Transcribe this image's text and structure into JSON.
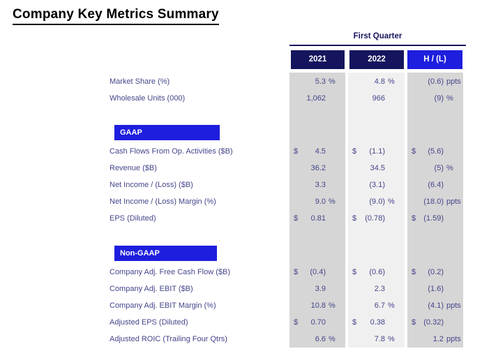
{
  "title": "Company Key Metrics Summary",
  "table": {
    "period_header": "First Quarter",
    "columns": [
      "2021",
      "2022",
      "H / (L)"
    ],
    "sections": {
      "gaap_label": "GAAP",
      "non_gaap_label": "Non-GAAP"
    },
    "rows": [
      {
        "label": "Market Share (%)",
        "cells": [
          {
            "d": "",
            "n": "5.3",
            "u": "%"
          },
          {
            "d": "",
            "n": "4.8",
            "u": "%"
          },
          {
            "d": "",
            "n": "(0.6)",
            "u": "ppts"
          }
        ]
      },
      {
        "label": "Wholesale Units (000)",
        "cells": [
          {
            "d": "",
            "n": "1,062",
            "u": ""
          },
          {
            "d": "",
            "n": "966",
            "u": ""
          },
          {
            "d": "",
            "n": "(9)",
            "u": "%"
          }
        ]
      },
      {
        "label": "Cash Flows From Op. Activities ($B)",
        "cells": [
          {
            "d": "$",
            "n": "4.5",
            "u": ""
          },
          {
            "d": "$",
            "n": "(1.1)",
            "u": ""
          },
          {
            "d": "$",
            "n": "(5.6)",
            "u": ""
          }
        ]
      },
      {
        "label": "Revenue ($B)",
        "cells": [
          {
            "d": "",
            "n": "36.2",
            "u": ""
          },
          {
            "d": "",
            "n": "34.5",
            "u": ""
          },
          {
            "d": "",
            "n": "(5)",
            "u": "%"
          }
        ]
      },
      {
        "label": "Net Income / (Loss) ($B)",
        "cells": [
          {
            "d": "",
            "n": "3.3",
            "u": ""
          },
          {
            "d": "",
            "n": "(3.1)",
            "u": ""
          },
          {
            "d": "",
            "n": "(6.4)",
            "u": ""
          }
        ]
      },
      {
        "label": "Net Income / (Loss) Margin (%)",
        "cells": [
          {
            "d": "",
            "n": "9.0",
            "u": "%"
          },
          {
            "d": "",
            "n": "(9.0)",
            "u": "%"
          },
          {
            "d": "",
            "n": "(18.0)",
            "u": "ppts"
          }
        ]
      },
      {
        "label": "EPS (Diluted)",
        "cells": [
          {
            "d": "$",
            "n": "0.81",
            "u": ""
          },
          {
            "d": "$",
            "n": "(0.78)",
            "u": ""
          },
          {
            "d": "$",
            "n": "(1.59)",
            "u": ""
          }
        ]
      },
      {
        "label": "Company Adj. Free Cash Flow ($B)",
        "cells": [
          {
            "d": "$",
            "n": "(0.4)",
            "u": ""
          },
          {
            "d": "$",
            "n": "(0.6)",
            "u": ""
          },
          {
            "d": "$",
            "n": "(0.2)",
            "u": ""
          }
        ]
      },
      {
        "label": "Company Adj. EBIT ($B)",
        "cells": [
          {
            "d": "",
            "n": "3.9",
            "u": ""
          },
          {
            "d": "",
            "n": "2.3",
            "u": ""
          },
          {
            "d": "",
            "n": "(1.6)",
            "u": ""
          }
        ]
      },
      {
        "label": "Company Adj. EBIT Margin (%)",
        "cells": [
          {
            "d": "",
            "n": "10.8",
            "u": "%"
          },
          {
            "d": "",
            "n": "6.7",
            "u": "%"
          },
          {
            "d": "",
            "n": "(4.1)",
            "u": "ppts"
          }
        ]
      },
      {
        "label": "Adjusted EPS (Diluted)",
        "cells": [
          {
            "d": "$",
            "n": "0.70",
            "u": ""
          },
          {
            "d": "$",
            "n": "0.38",
            "u": ""
          },
          {
            "d": "$",
            "n": "(0.32)",
            "u": ""
          }
        ]
      },
      {
        "label": "Adjusted ROIC (Trailing Four Qtrs)",
        "cells": [
          {
            "d": "",
            "n": "6.6",
            "u": "%"
          },
          {
            "d": "",
            "n": "7.8",
            "u": "%"
          },
          {
            "d": "",
            "n": "1.2",
            "u": "ppts"
          }
        ]
      }
    ]
  },
  "colors": {
    "navy": "#15155d",
    "bright_blue": "#1e1ede",
    "col_gray": "#d6d6d6",
    "col_light_gray": "#f0f0f0",
    "text_blue": "#45458c",
    "title_black": "#000000"
  }
}
